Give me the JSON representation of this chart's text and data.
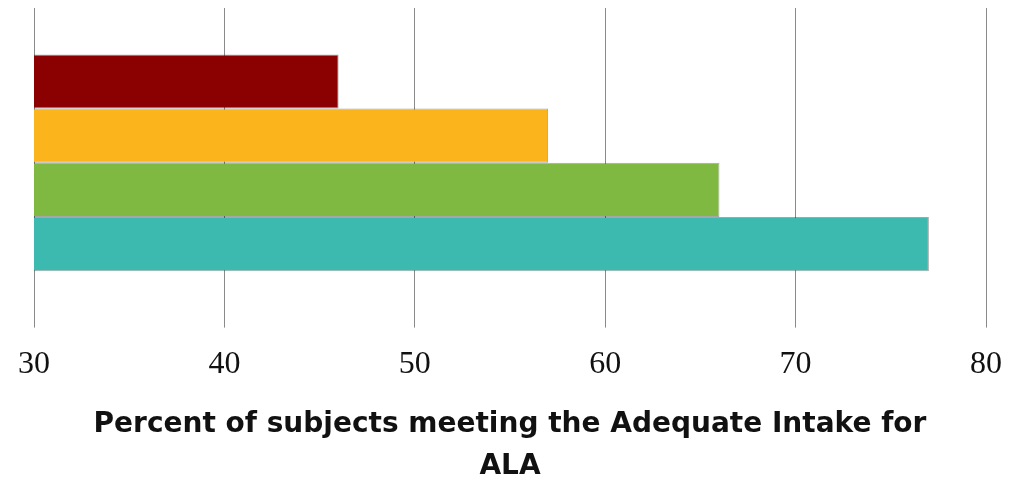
{
  "chart_data": {
    "type": "bar",
    "orientation": "horizontal",
    "xlabel": "Percent of subjects meeting the Adequate Intake for ALA",
    "categories": [
      null
    ],
    "series": [
      {
        "color": "#8b0000",
        "values": [
          46
        ]
      },
      {
        "color": "#fbb41c",
        "values": [
          57
        ]
      },
      {
        "color": "#7fb942",
        "values": [
          66
        ]
      },
      {
        "color": "#3dbab0",
        "values": [
          77
        ]
      }
    ],
    "xlim": [
      30,
      80
    ],
    "xticks": [
      30,
      40,
      50,
      60,
      70,
      80
    ],
    "grid": "x",
    "legend": false
  }
}
